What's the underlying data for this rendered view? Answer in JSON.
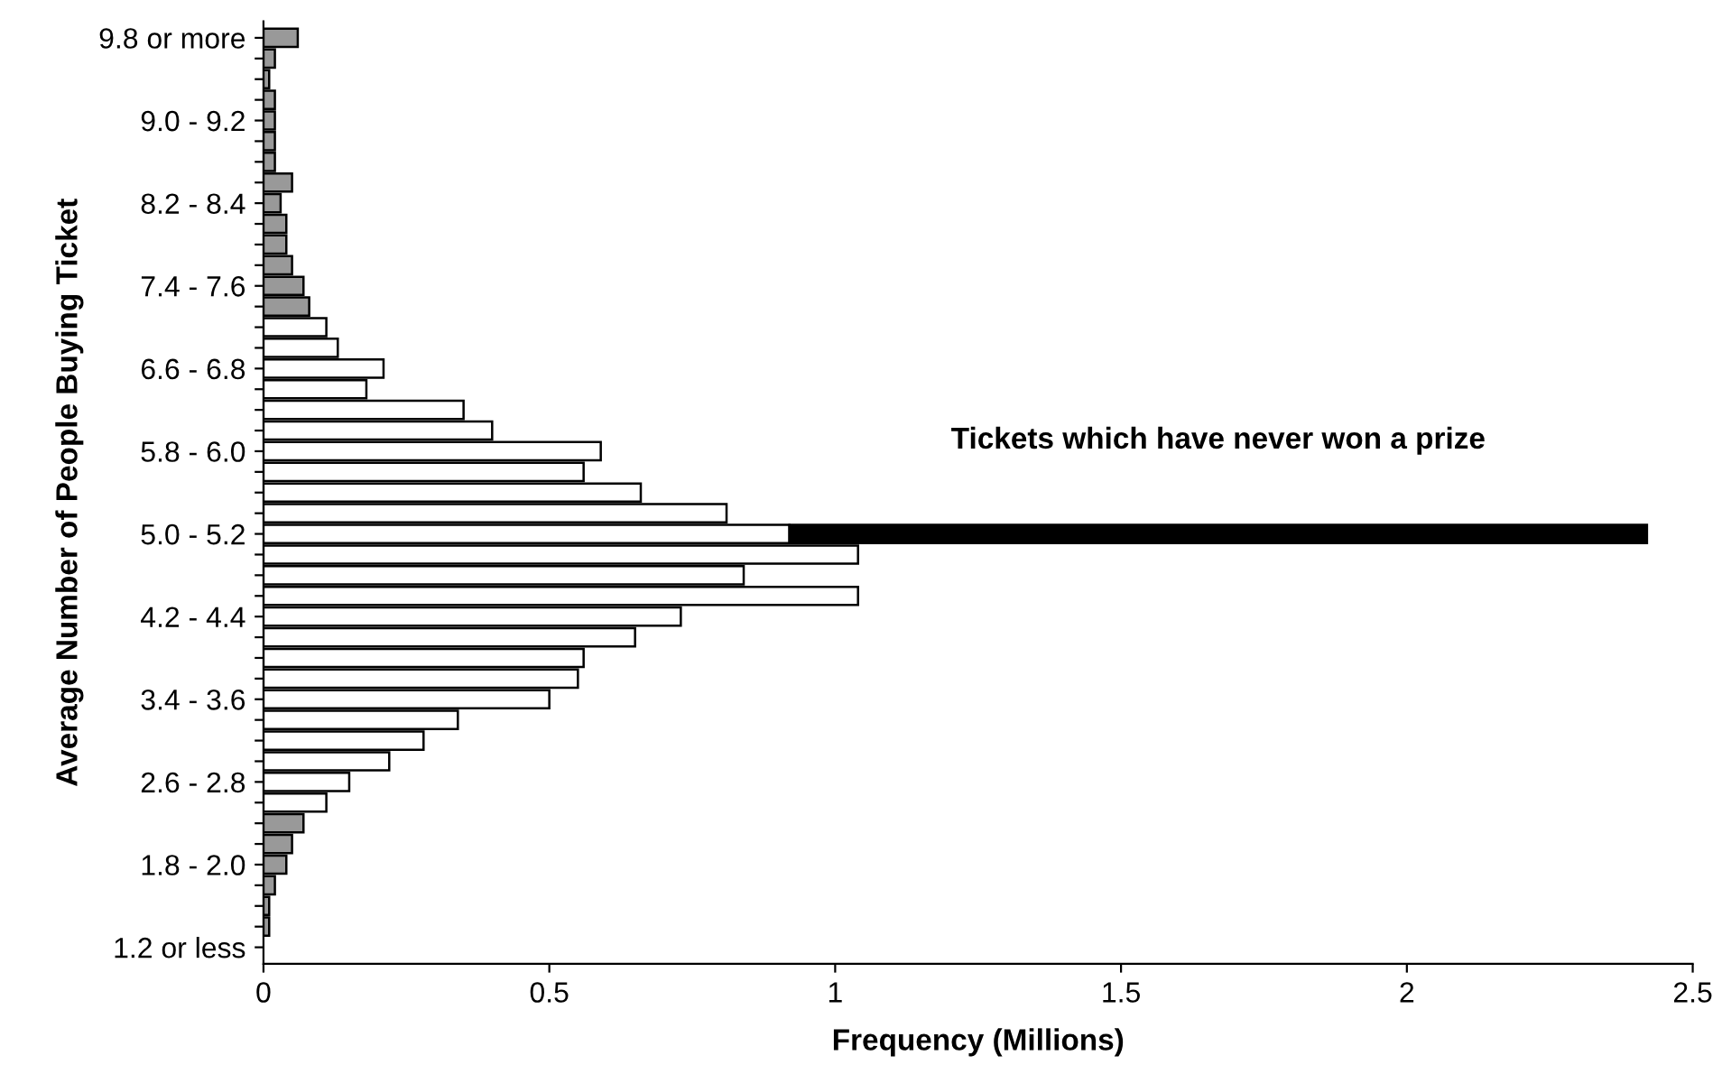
{
  "chart_data": {
    "type": "bar",
    "orientation": "horizontal",
    "stacked": true,
    "xlabel": "Frequency (Millions)",
    "ylabel": "Average Number of People Buying Ticket",
    "categories": [
      "9.8 or more",
      null,
      null,
      null,
      "9.0 - 9.2",
      null,
      null,
      null,
      "8.2 - 8.4",
      null,
      null,
      null,
      "7.4 - 7.6",
      null,
      null,
      null,
      "6.6 - 6.8",
      null,
      null,
      null,
      "5.8 - 6.0",
      null,
      null,
      null,
      "5.0 - 5.2",
      null,
      null,
      null,
      "4.2 - 4.4",
      null,
      null,
      null,
      "3.4 - 3.6",
      null,
      null,
      null,
      "2.6 - 2.8",
      null,
      null,
      null,
      "1.8 - 2.0",
      null,
      null,
      null,
      "1.2 or less"
    ],
    "series": [
      {
        "colors": [
          "#999999",
          "#999999",
          "#999999",
          "#999999",
          "#999999",
          "#999999",
          "#999999",
          "#999999",
          "#999999",
          "#999999",
          "#999999",
          "#999999",
          "#999999",
          "#999999",
          "#ffffff",
          "#ffffff",
          "#ffffff",
          "#ffffff",
          "#ffffff",
          "#ffffff",
          "#ffffff",
          "#ffffff",
          "#ffffff",
          "#ffffff",
          "#ffffff",
          "#ffffff",
          "#ffffff",
          "#ffffff",
          "#ffffff",
          "#ffffff",
          "#ffffff",
          "#ffffff",
          "#ffffff",
          "#ffffff",
          "#ffffff",
          "#ffffff",
          "#ffffff",
          "#ffffff",
          "#999999",
          "#999999",
          "#999999",
          "#999999",
          "#999999",
          "#999999",
          "#999999"
        ],
        "values": [
          0.06,
          0.02,
          0.01,
          0.02,
          0.02,
          0.02,
          0.02,
          0.05,
          0.03,
          0.04,
          0.04,
          0.05,
          0.07,
          0.08,
          0.11,
          0.13,
          0.21,
          0.18,
          0.35,
          0.4,
          0.59,
          0.56,
          0.66,
          0.81,
          0.92,
          1.04,
          0.84,
          1.04,
          0.73,
          0.65,
          0.56,
          0.55,
          0.5,
          0.34,
          0.28,
          0.22,
          0.15,
          0.11,
          0.07,
          0.05,
          0.04,
          0.02,
          0.01,
          0.01,
          null
        ]
      },
      {
        "color": "#000000",
        "values": [
          null,
          null,
          null,
          null,
          null,
          null,
          null,
          null,
          null,
          null,
          null,
          null,
          null,
          null,
          null,
          null,
          null,
          null,
          null,
          null,
          null,
          null,
          null,
          null,
          1.5,
          null,
          null,
          null,
          null,
          null,
          null,
          null,
          null,
          null,
          null,
          null,
          null,
          null,
          null,
          null,
          null,
          null,
          null,
          null,
          null
        ]
      }
    ],
    "annotations": [
      "Tickets which have never won a prize"
    ],
    "xlim": [
      0,
      2.5
    ],
    "xticks": [
      0,
      0.5,
      1,
      1.5,
      2,
      2.5
    ],
    "grid": false,
    "legend": false
  }
}
